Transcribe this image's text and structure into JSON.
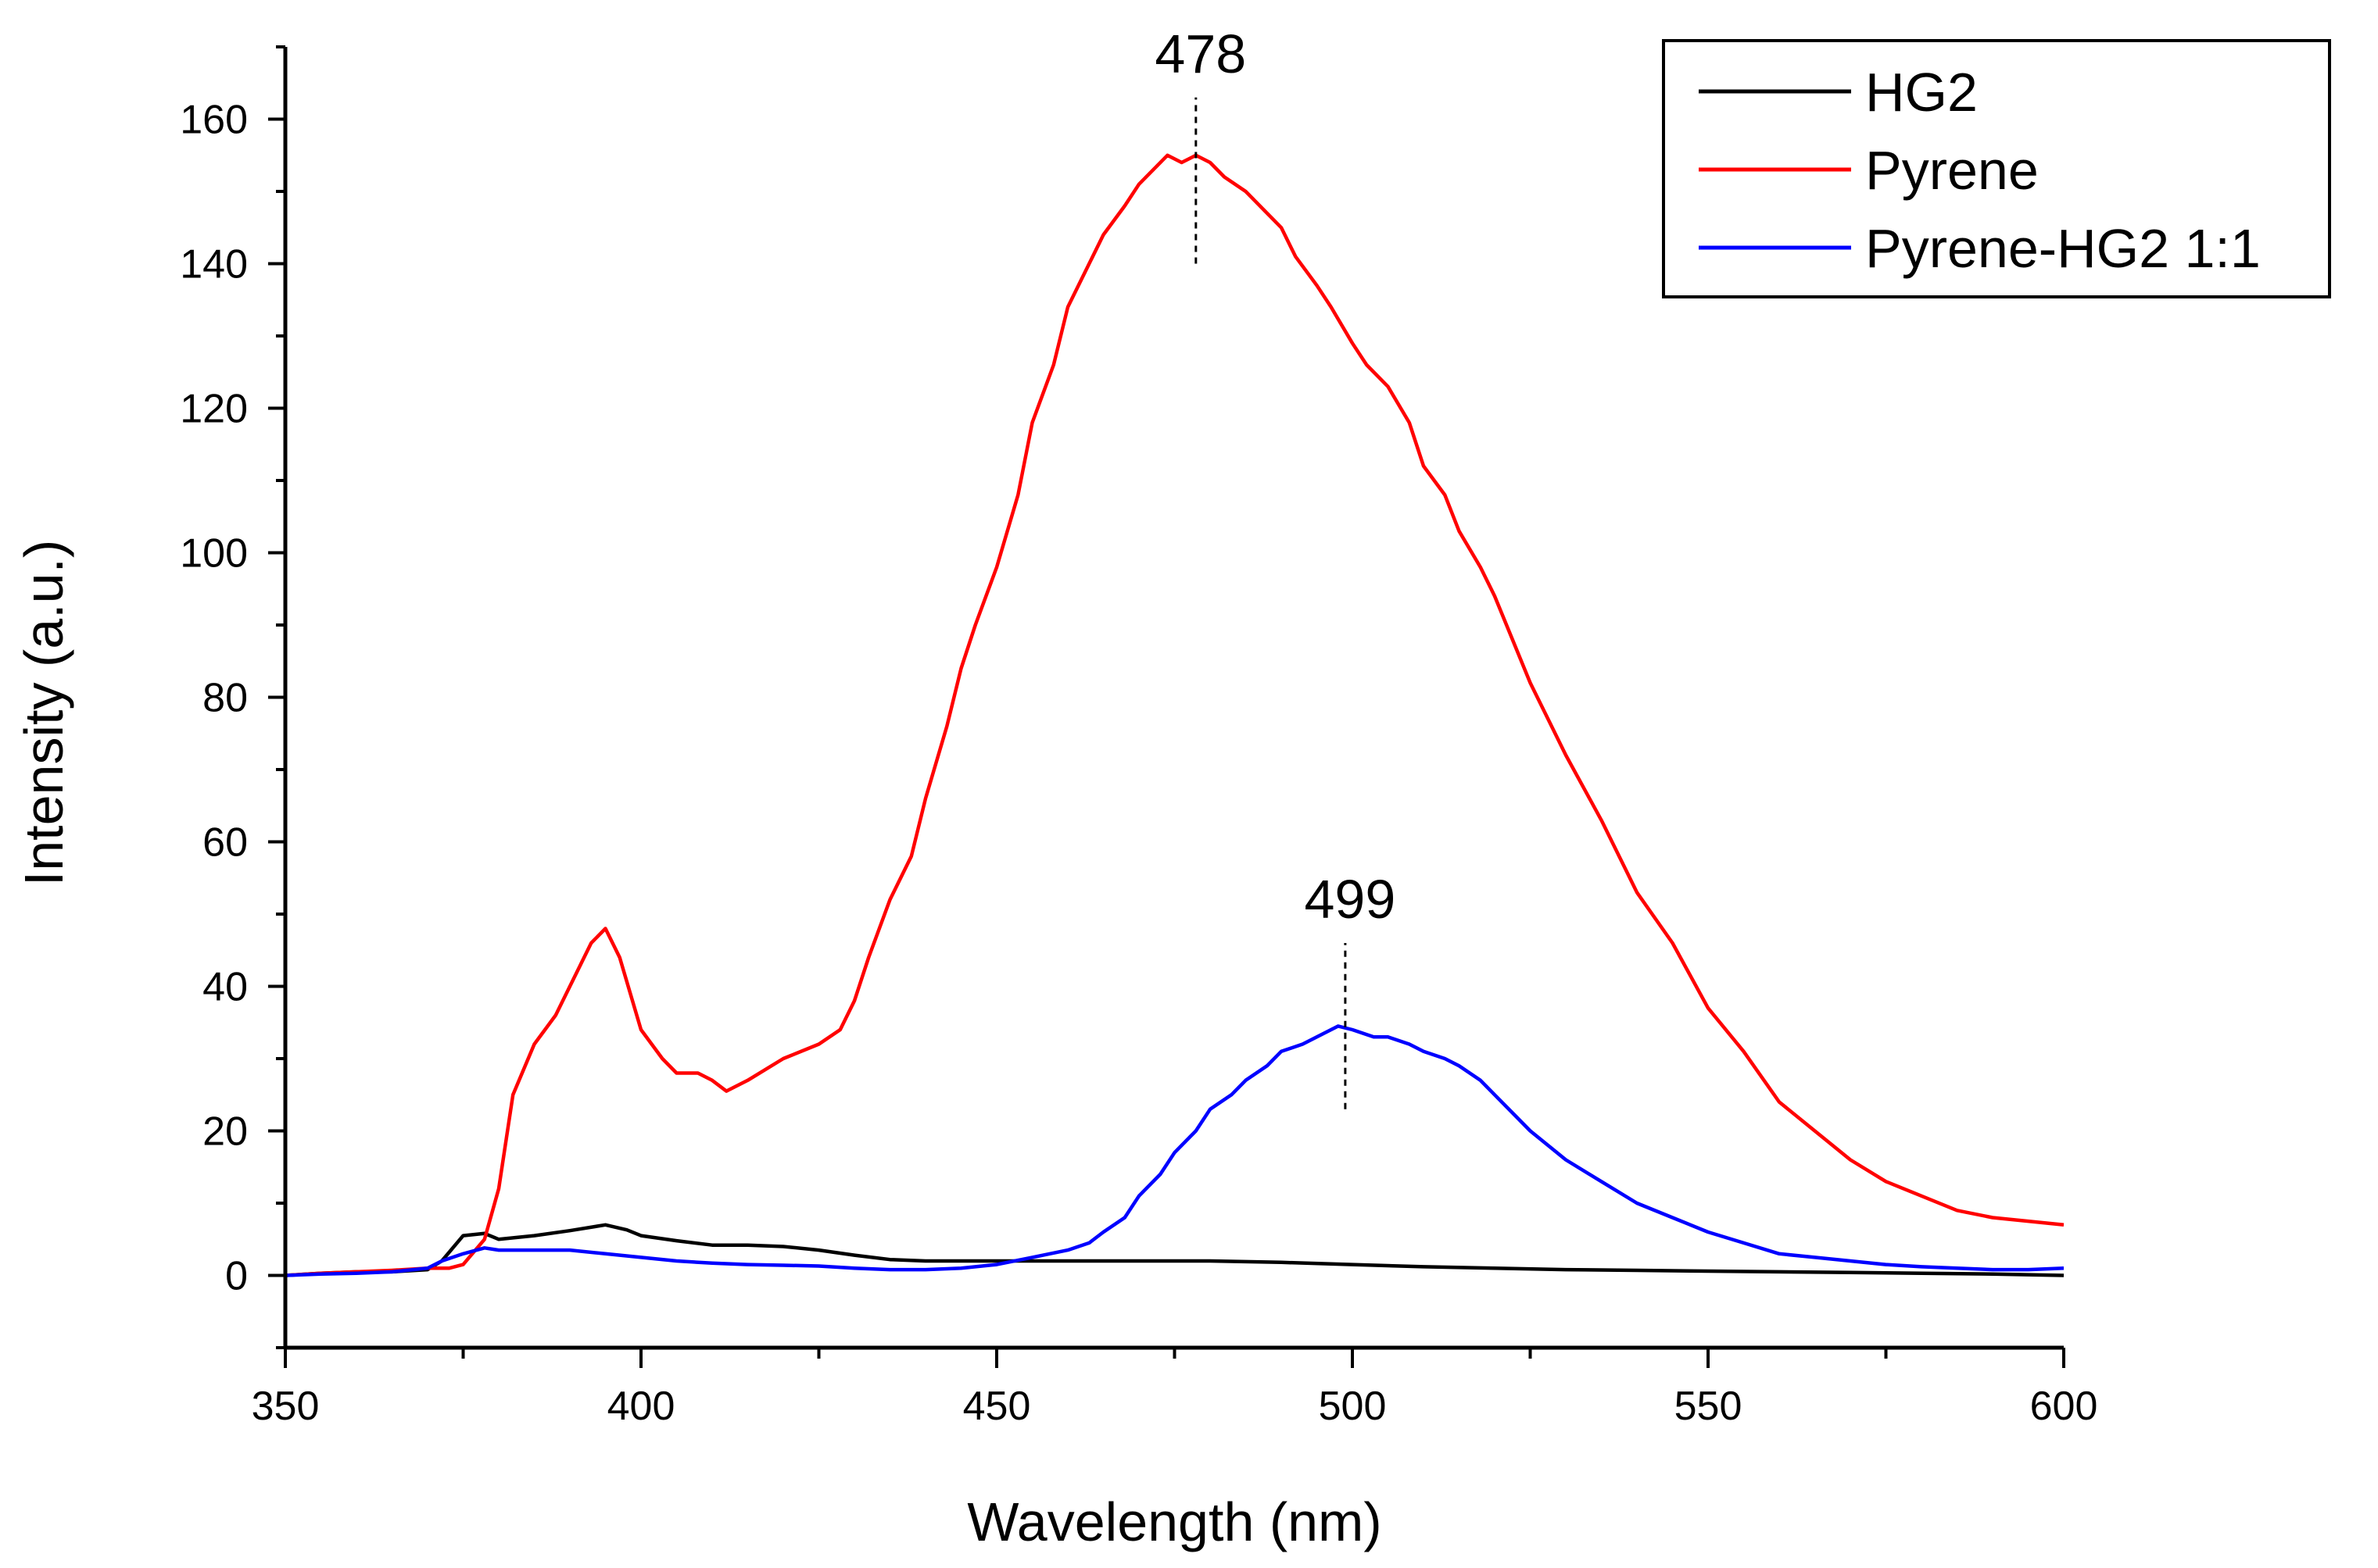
{
  "chart_data": {
    "type": "line",
    "title": "",
    "xlabel": "Wavelength (nm)",
    "ylabel": "Intensity (a.u.)",
    "xlim": [
      350,
      600
    ],
    "ylim": [
      -10,
      170
    ],
    "x_ticks": [
      350,
      400,
      450,
      500,
      550,
      600
    ],
    "x_tick_labels": [
      "350",
      "400",
      "450",
      "500",
      "550",
      "600"
    ],
    "y_ticks": [
      0,
      20,
      40,
      60,
      80,
      100,
      120,
      140,
      160
    ],
    "y_tick_labels": [
      "0",
      "20",
      "40",
      "60",
      "80",
      "100",
      "120",
      "140",
      "160"
    ],
    "grid": false,
    "legend_position": "top-right",
    "series": [
      {
        "name": "HG2",
        "color": "#000000",
        "x": [
          350,
          355,
          360,
          365,
          370,
          372,
          375,
          378,
          380,
          385,
          390,
          395,
          398,
          400,
          405,
          410,
          415,
          420,
          425,
          430,
          435,
          440,
          445,
          450,
          460,
          470,
          480,
          490,
          500,
          510,
          520,
          530,
          540,
          550,
          560,
          570,
          580,
          590,
          600
        ],
        "values": [
          0,
          0.3,
          0.5,
          0.5,
          0.8,
          2,
          5.5,
          5.8,
          5,
          5.5,
          6.2,
          7,
          6.3,
          5.5,
          4.8,
          4.2,
          4.2,
          4,
          3.5,
          2.8,
          2.2,
          2,
          2,
          2,
          2,
          2,
          2,
          1.8,
          1.5,
          1.2,
          1,
          0.8,
          0.7,
          0.6,
          0.5,
          0.4,
          0.3,
          0.2,
          0
        ]
      },
      {
        "name": "Pyrene",
        "color": "#ff0000",
        "x": [
          350,
          355,
          360,
          365,
          370,
          373,
          375,
          378,
          380,
          382,
          385,
          388,
          390,
          393,
          395,
          397,
          400,
          403,
          405,
          408,
          410,
          412,
          415,
          420,
          425,
          428,
          430,
          432,
          435,
          438,
          440,
          443,
          445,
          447,
          450,
          453,
          455,
          458,
          460,
          462,
          465,
          468,
          470,
          472,
          474,
          476,
          478,
          480,
          482,
          485,
          488,
          490,
          492,
          495,
          497,
          500,
          502,
          505,
          508,
          510,
          513,
          515,
          518,
          520,
          525,
          530,
          535,
          540,
          545,
          550,
          555,
          560,
          565,
          570,
          575,
          580,
          585,
          590,
          595,
          600
        ],
        "values": [
          0,
          0.3,
          0.5,
          0.7,
          1,
          1,
          1.5,
          5,
          12,
          25,
          32,
          36,
          40,
          46,
          48,
          44,
          34,
          30,
          28,
          28,
          27,
          25.5,
          27,
          30,
          32,
          34,
          38,
          44,
          52,
          58,
          66,
          76,
          84,
          90,
          98,
          108,
          118,
          126,
          134,
          138,
          144,
          148,
          151,
          153,
          155,
          154,
          155,
          154,
          152,
          150,
          147,
          145,
          141,
          137,
          134,
          129,
          126,
          123,
          118,
          112,
          108,
          103,
          98,
          94,
          82,
          72,
          63,
          53,
          46,
          37,
          31,
          24,
          20,
          16,
          13,
          11,
          9,
          8,
          7.5,
          7
        ]
      },
      {
        "name": "Pyrene-HG2 1:1",
        "color": "#0000ff",
        "x": [
          350,
          355,
          360,
          365,
          370,
          372,
          375,
          378,
          380,
          385,
          390,
          395,
          400,
          405,
          410,
          415,
          420,
          425,
          430,
          435,
          440,
          445,
          450,
          455,
          460,
          463,
          465,
          468,
          470,
          473,
          475,
          478,
          480,
          483,
          485,
          488,
          490,
          493,
          495,
          498,
          500,
          503,
          505,
          508,
          510,
          513,
          515,
          518,
          520,
          523,
          525,
          530,
          535,
          540,
          545,
          550,
          555,
          560,
          565,
          570,
          575,
          580,
          585,
          590,
          595,
          600
        ],
        "values": [
          0,
          0.2,
          0.3,
          0.5,
          1,
          2,
          3,
          3.8,
          3.5,
          3.5,
          3.5,
          3,
          2.5,
          2,
          1.7,
          1.5,
          1.4,
          1.3,
          1,
          0.8,
          0.8,
          1,
          1.5,
          2.5,
          3.5,
          4.5,
          6,
          8,
          11,
          14,
          17,
          20,
          23,
          25,
          27,
          29,
          31,
          32,
          33,
          34.5,
          34,
          33,
          33,
          32,
          31,
          30,
          29,
          27,
          25,
          22,
          20,
          16,
          13,
          10,
          8,
          6,
          4.5,
          3,
          2.5,
          2,
          1.5,
          1.2,
          1,
          0.8,
          0.8,
          1
        ]
      }
    ],
    "annotations": [
      {
        "text": "478",
        "x": 478,
        "line_from": 140,
        "line_to": 163,
        "color": "#000000"
      },
      {
        "text": "499",
        "x": 499,
        "line_from": 23,
        "line_to": 46,
        "color": "#000000"
      }
    ]
  }
}
